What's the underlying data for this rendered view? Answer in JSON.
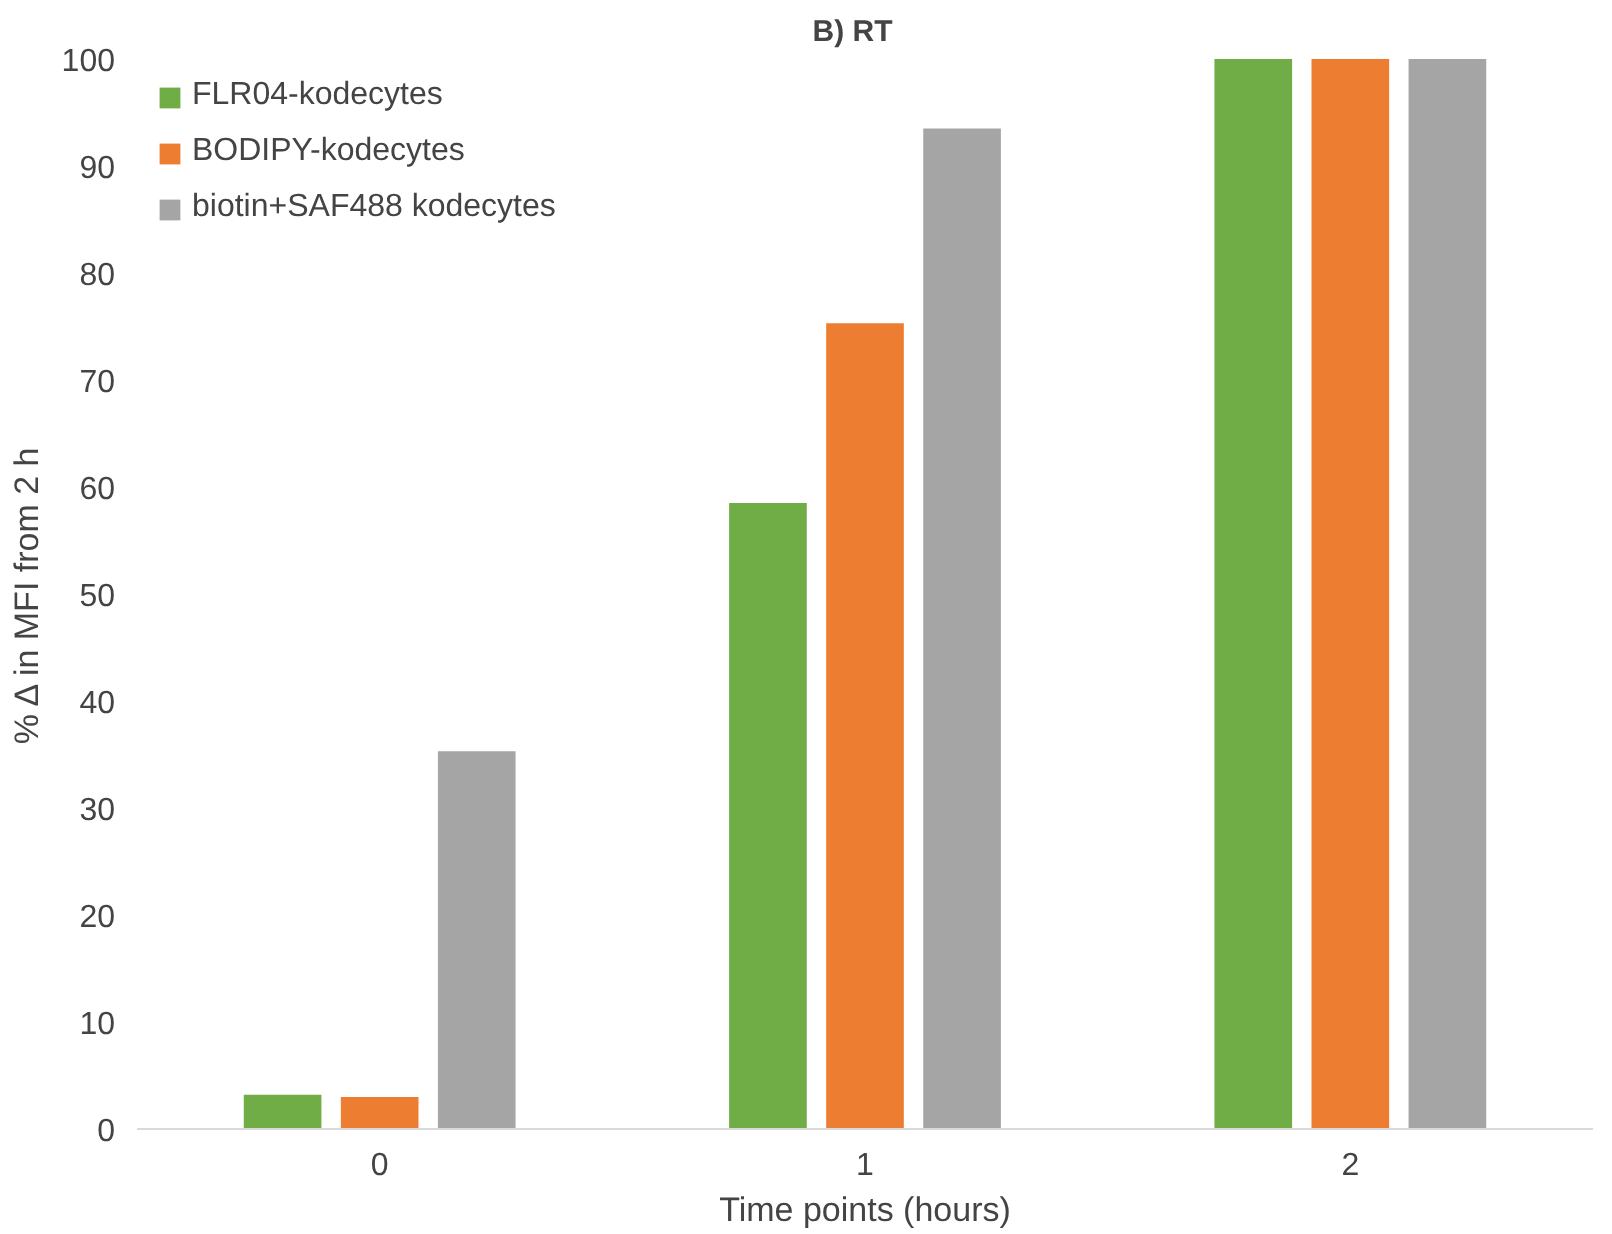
{
  "chart_data": {
    "type": "bar",
    "title": "B)    RT",
    "xlabel": "Time points (hours)",
    "ylabel": "% Δ in MFI from 2 h",
    "categories": [
      "0",
      "1",
      "2"
    ],
    "series": [
      {
        "name": "FLR04-kodecytes",
        "color": "#70ad47",
        "values": [
          3.2,
          58.5,
          100
        ]
      },
      {
        "name": "BODIPY-kodecytes",
        "color": "#ed7d31",
        "values": [
          3.0,
          75.3,
          100
        ]
      },
      {
        "name": "biotin+SAF488 kodecytes",
        "color": "#a5a5a5",
        "values": [
          35.3,
          93.5,
          100
        ]
      }
    ],
    "ylim": [
      0,
      100
    ],
    "yticks": [
      0,
      10,
      20,
      30,
      40,
      50,
      60,
      70,
      80,
      90,
      100
    ],
    "grid": false,
    "legend": "top left"
  }
}
